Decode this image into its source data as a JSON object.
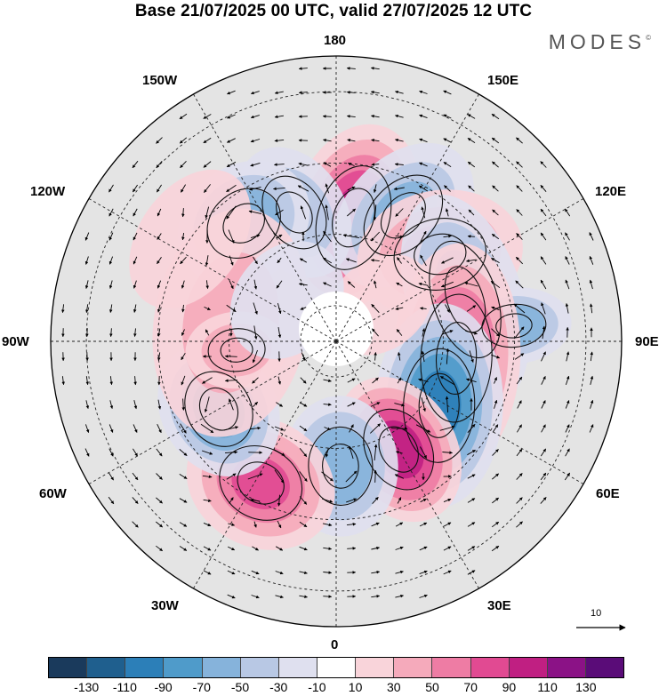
{
  "title": "Base 21/07/2025 00 UTC, valid 27/07/2025 12 UTC",
  "brand": "MODES",
  "brand_mark": "©",
  "longitude_labels": [
    {
      "key": "180",
      "text": "180"
    },
    {
      "key": "150E",
      "text": "150E"
    },
    {
      "key": "120E",
      "text": "120E"
    },
    {
      "key": "90E",
      "text": "90E"
    },
    {
      "key": "60E",
      "text": "60E"
    },
    {
      "key": "30E",
      "text": "30E"
    },
    {
      "key": "0",
      "text": "0"
    },
    {
      "key": "30W",
      "text": "30W"
    },
    {
      "key": "60W",
      "text": "60W"
    },
    {
      "key": "90W",
      "text": "90W"
    },
    {
      "key": "120W",
      "text": "120W"
    },
    {
      "key": "150W",
      "text": "150W"
    }
  ],
  "reference_vector": {
    "value": "10",
    "icon": "arrow-icon"
  },
  "colorbar": {
    "colors": [
      "#1a3a5c",
      "#1f5f8e",
      "#2c7fb8",
      "#4f9bca",
      "#86b3db",
      "#b8c8e4",
      "#dfe0ef",
      "#ffffff",
      "#f9d4da",
      "#f5aabb",
      "#ee7ca4",
      "#e14a92",
      "#c01f82",
      "#8b1286",
      "#5a0c78"
    ],
    "ticks": [
      "-130",
      "-110",
      "-90",
      "-70",
      "-50",
      "-30",
      "-10",
      "10",
      "30",
      "50",
      "70",
      "90",
      "110",
      "130"
    ]
  },
  "anomalies": [
    {
      "id": "pos-nw-pacific",
      "lon": 172,
      "lat": 55,
      "value": 95,
      "sx": 1.0,
      "sy": 1.5,
      "rot": 10
    },
    {
      "id": "neg-pacific",
      "lon": -162,
      "lat": 52,
      "value": -45,
      "sx": 0.8,
      "sy": 1.1,
      "rot": -15
    },
    {
      "id": "neg-aleutian",
      "lon": 152,
      "lat": 50,
      "value": -55,
      "sx": 0.9,
      "sy": 1.3,
      "rot": 15
    },
    {
      "id": "pos-east-siberia",
      "lon": 130,
      "lat": 52,
      "value": 55,
      "sx": 1.0,
      "sy": 1.3,
      "rot": 30
    },
    {
      "id": "neg-alaska-gulf",
      "lon": -142,
      "lat": 48,
      "value": -65,
      "sx": 1.1,
      "sy": 0.9,
      "rot": 0
    },
    {
      "id": "neg-siberia",
      "lon": 108,
      "lat": 52,
      "value": -55,
      "sx": 1.7,
      "sy": 0.9,
      "rot": 0
    },
    {
      "id": "neg-east-asia",
      "lon": 95,
      "lat": 40,
      "value": -65,
      "sx": 0.6,
      "sy": 0.9,
      "rot": 0
    },
    {
      "id": "pos-central-asia",
      "lon": 82,
      "lat": 56,
      "value": 80,
      "sx": 1.8,
      "sy": 1.0,
      "rot": -5
    },
    {
      "id": "neg-west-siberia",
      "lon": 58,
      "lat": 56,
      "value": -95,
      "sx": 1.6,
      "sy": 1.0,
      "rot": -30
    },
    {
      "id": "pos-europe",
      "lon": 30,
      "lat": 55,
      "value": 105,
      "sx": 0.9,
      "sy": 1.2,
      "rot": 0
    },
    {
      "id": "neg-north-atlantic",
      "lon": 2,
      "lat": 55,
      "value": -65,
      "sx": 0.9,
      "sy": 1.1,
      "rot": 0
    },
    {
      "id": "pos-mid-atlantic",
      "lon": -28,
      "lat": 45,
      "value": 75,
      "sx": 1.2,
      "sy": 1.0,
      "rot": 0
    },
    {
      "id": "neg-labrador",
      "lon": -60,
      "lat": 52,
      "value": -80,
      "sx": 1.1,
      "sy": 0.9,
      "rot": 0
    },
    {
      "id": "pos-canada",
      "lon": -100,
      "lat": 60,
      "value": 35,
      "sx": 1.8,
      "sy": 1.2,
      "rot": 0
    },
    {
      "id": "pos-hudson",
      "lon": -85,
      "lat": 62,
      "value": 45,
      "sx": 0.6,
      "sy": 0.8,
      "rot": 0
    },
    {
      "id": "pos-west-us",
      "lon": -125,
      "lat": 40,
      "value": 25,
      "sx": 1.2,
      "sy": 0.8,
      "rot": 0
    },
    {
      "id": "pos-arctic-ocean",
      "lon": 130,
      "lat": 74,
      "value": 30,
      "sx": 0.7,
      "sy": 0.9,
      "rot": 0
    },
    {
      "id": "neg-canada-archipelago",
      "lon": -130,
      "lat": 72,
      "value": -20,
      "sx": 1.0,
      "sy": 0.8,
      "rot": 0
    }
  ]
}
